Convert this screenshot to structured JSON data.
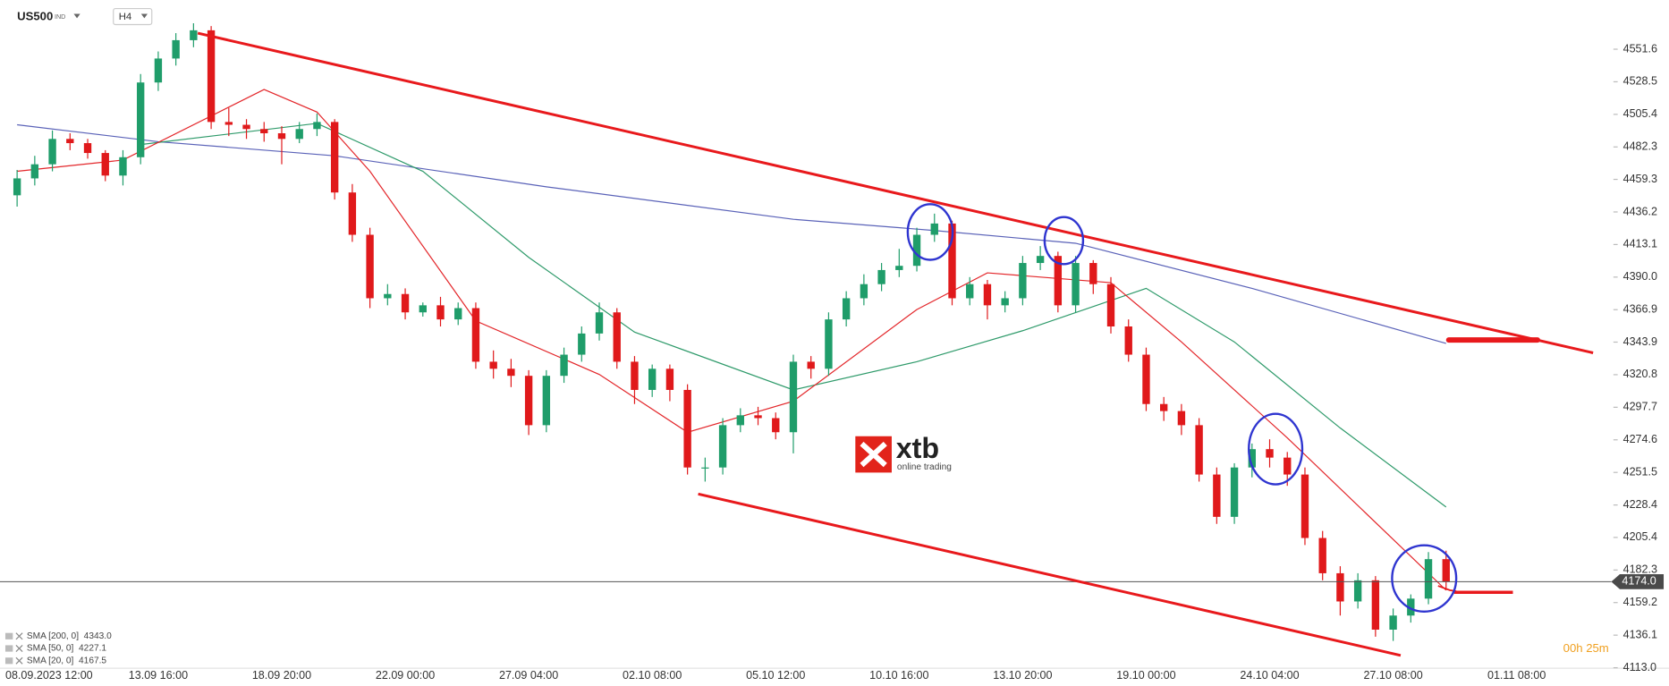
{
  "chart_data": {
    "type": "candlestick",
    "symbol": "US500",
    "exchange": "IND",
    "timeframe": "H4",
    "timer": "00h 25m",
    "logo": {
      "brand": "xtb",
      "tagline": "online trading"
    },
    "up_color": "#1f9d6a",
    "down_color": "#e0191b",
    "categories": [
      "08.09.2023  12:00",
      null,
      null,
      null,
      null,
      null,
      null,
      null,
      "13.09  16:00",
      null,
      null,
      null,
      null,
      null,
      null,
      "18.09  20:00",
      null,
      null,
      null,
      null,
      null,
      null,
      "22.09  00:00",
      null,
      null,
      null,
      null,
      null,
      null,
      "27.09  04:00",
      null,
      null,
      null,
      null,
      null,
      null,
      "02.10  08:00",
      null,
      null,
      null,
      null,
      null,
      null,
      "05.10  12:00",
      null,
      null,
      null,
      null,
      null,
      null,
      "10.10  16:00",
      null,
      null,
      null,
      null,
      null,
      null,
      "13.10  20:00",
      null,
      null,
      null,
      null,
      null,
      null,
      "19.10  00:00",
      null,
      null,
      null,
      null,
      null,
      null,
      "24.10  04:00",
      null,
      null,
      null,
      null,
      null,
      null,
      "27.10  08:00",
      null,
      null,
      null,
      null,
      null,
      null,
      "01.11  08:00"
    ],
    "ohlc": {
      "open": [
        4448,
        4460,
        4470,
        4488,
        4485,
        4478,
        4462,
        4475,
        4528,
        4545,
        4558,
        4565,
        4500,
        4498,
        4495,
        4492,
        4488,
        4495,
        4500,
        4450,
        4420,
        4375,
        4378,
        4365,
        4370,
        4360,
        4368,
        4330,
        4325,
        4320,
        4285,
        4320,
        4335,
        4350,
        4365,
        4330,
        4310,
        4325,
        4310,
        4255,
        4255,
        4285,
        4292,
        4290,
        4280,
        4330,
        4325,
        4360,
        4375,
        4385,
        4395,
        4398,
        4420,
        4428,
        4375,
        4385,
        4370,
        4375,
        4400,
        4405,
        4370,
        4400,
        4385,
        4355,
        4335,
        4300,
        4295,
        4285,
        4250,
        4220,
        4255,
        4268,
        4262,
        4250,
        4205,
        4180,
        4160,
        4175,
        4140,
        4150,
        4162,
        4190,
        null,
        null,
        null,
        null
      ],
      "high": [
        4466,
        4476,
        4494,
        4492,
        4488,
        4480,
        4480,
        4534,
        4550,
        4563,
        4570,
        4568,
        4510,
        4502,
        4500,
        4497,
        4500,
        4506,
        4502,
        4456,
        4425,
        4385,
        4382,
        4372,
        4376,
        4372,
        4372,
        4338,
        4332,
        4324,
        4324,
        4340,
        4355,
        4372,
        4368,
        4334,
        4328,
        4328,
        4314,
        4262,
        4290,
        4297,
        4298,
        4294,
        4335,
        4334,
        4365,
        4380,
        4392,
        4400,
        4410,
        4425,
        4435,
        4430,
        4390,
        4388,
        4380,
        4405,
        4412,
        4408,
        4405,
        4402,
        4390,
        4360,
        4340,
        4305,
        4300,
        4290,
        4255,
        4258,
        4272,
        4275,
        4266,
        4255,
        4210,
        4185,
        4180,
        4178,
        4155,
        4165,
        4195,
        4196,
        null,
        null,
        null,
        null
      ],
      "low": [
        4440,
        4455,
        4465,
        4480,
        4474,
        4458,
        4455,
        4470,
        4522,
        4540,
        4553,
        4495,
        4490,
        4488,
        4486,
        4470,
        4485,
        4490,
        4445,
        4415,
        4368,
        4370,
        4360,
        4362,
        4355,
        4356,
        4325,
        4318,
        4312,
        4278,
        4280,
        4315,
        4330,
        4345,
        4325,
        4300,
        4305,
        4302,
        4250,
        4245,
        4250,
        4280,
        4285,
        4275,
        4265,
        4318,
        4320,
        4355,
        4370,
        4380,
        4390,
        4394,
        4415,
        4370,
        4370,
        4360,
        4365,
        4370,
        4395,
        4365,
        4365,
        4378,
        4350,
        4330,
        4295,
        4288,
        4278,
        4245,
        4215,
        4215,
        4248,
        4255,
        4242,
        4200,
        4175,
        4150,
        4155,
        4135,
        4132,
        4145,
        4158,
        4168,
        null,
        null,
        null,
        null
      ],
      "close": [
        4460,
        4470,
        4488,
        4485,
        4478,
        4462,
        4475,
        4528,
        4545,
        4558,
        4565,
        4500,
        4498,
        4495,
        4492,
        4488,
        4495,
        4500,
        4450,
        4420,
        4375,
        4378,
        4365,
        4370,
        4360,
        4368,
        4330,
        4325,
        4320,
        4285,
        4320,
        4335,
        4350,
        4365,
        4330,
        4310,
        4325,
        4310,
        4255,
        4255,
        4285,
        4292,
        4290,
        4280,
        4330,
        4325,
        4360,
        4375,
        4385,
        4395,
        4398,
        4420,
        4428,
        4375,
        4385,
        4370,
        4375,
        4400,
        4405,
        4370,
        4400,
        4385,
        4355,
        4335,
        4300,
        4295,
        4285,
        4250,
        4220,
        4255,
        4268,
        4262,
        4250,
        4205,
        4180,
        4160,
        4175,
        4140,
        4150,
        4162,
        4190,
        4174,
        null,
        null,
        null,
        null
      ]
    },
    "lines": [
      {
        "name": "SMA [200, 0]  4343.0",
        "color": "#5a62b8",
        "x": [
          0,
          8,
          18,
          30,
          44,
          52,
          60,
          70,
          81
        ],
        "values": [
          4498,
          4486,
          4476,
          4454,
          4431,
          4423,
          4414,
          4382,
          4343
        ]
      },
      {
        "name": "SMA [50, 0]  4227.1",
        "color": "#2e9a6a",
        "x": [
          7,
          11,
          17,
          23,
          29,
          35,
          44,
          51,
          57,
          64,
          69,
          75,
          81
        ],
        "values": [
          4484,
          4490,
          4499,
          4465,
          4404,
          4351,
          4310,
          4330,
          4352,
          4382,
          4344,
          4283,
          4227
        ]
      },
      {
        "name": "SMA [20, 0]  4167.5",
        "color": "#e3262a",
        "x": [
          0,
          6,
          14,
          17,
          20,
          26,
          33,
          38,
          44,
          51,
          55,
          62,
          66,
          72,
          78,
          81
        ],
        "values": [
          4465,
          4473,
          4523,
          4507,
          4465,
          4359,
          4321,
          4280,
          4302,
          4367,
          4393,
          4386,
          4344,
          4276,
          4204,
          4168
        ]
      }
    ],
    "last_price": {
      "value": 4174,
      "label": "4174.0"
    },
    "ylim": [
      4113.4,
      4578.9
    ],
    "yticks": [
      {
        "value": 4113,
        "label": "4113.0"
      },
      4136.1,
      4159.2,
      4182.3,
      4205.4,
      4228.4,
      4251.5,
      4274.6,
      4297.7,
      4320.8,
      4343.9,
      4366.9,
      {
        "value": 4390,
        "label": "4390.0"
      },
      4413.1,
      4436.2,
      4459.3,
      4482.3,
      4505.4,
      4528.5,
      4551.6
    ]
  }
}
